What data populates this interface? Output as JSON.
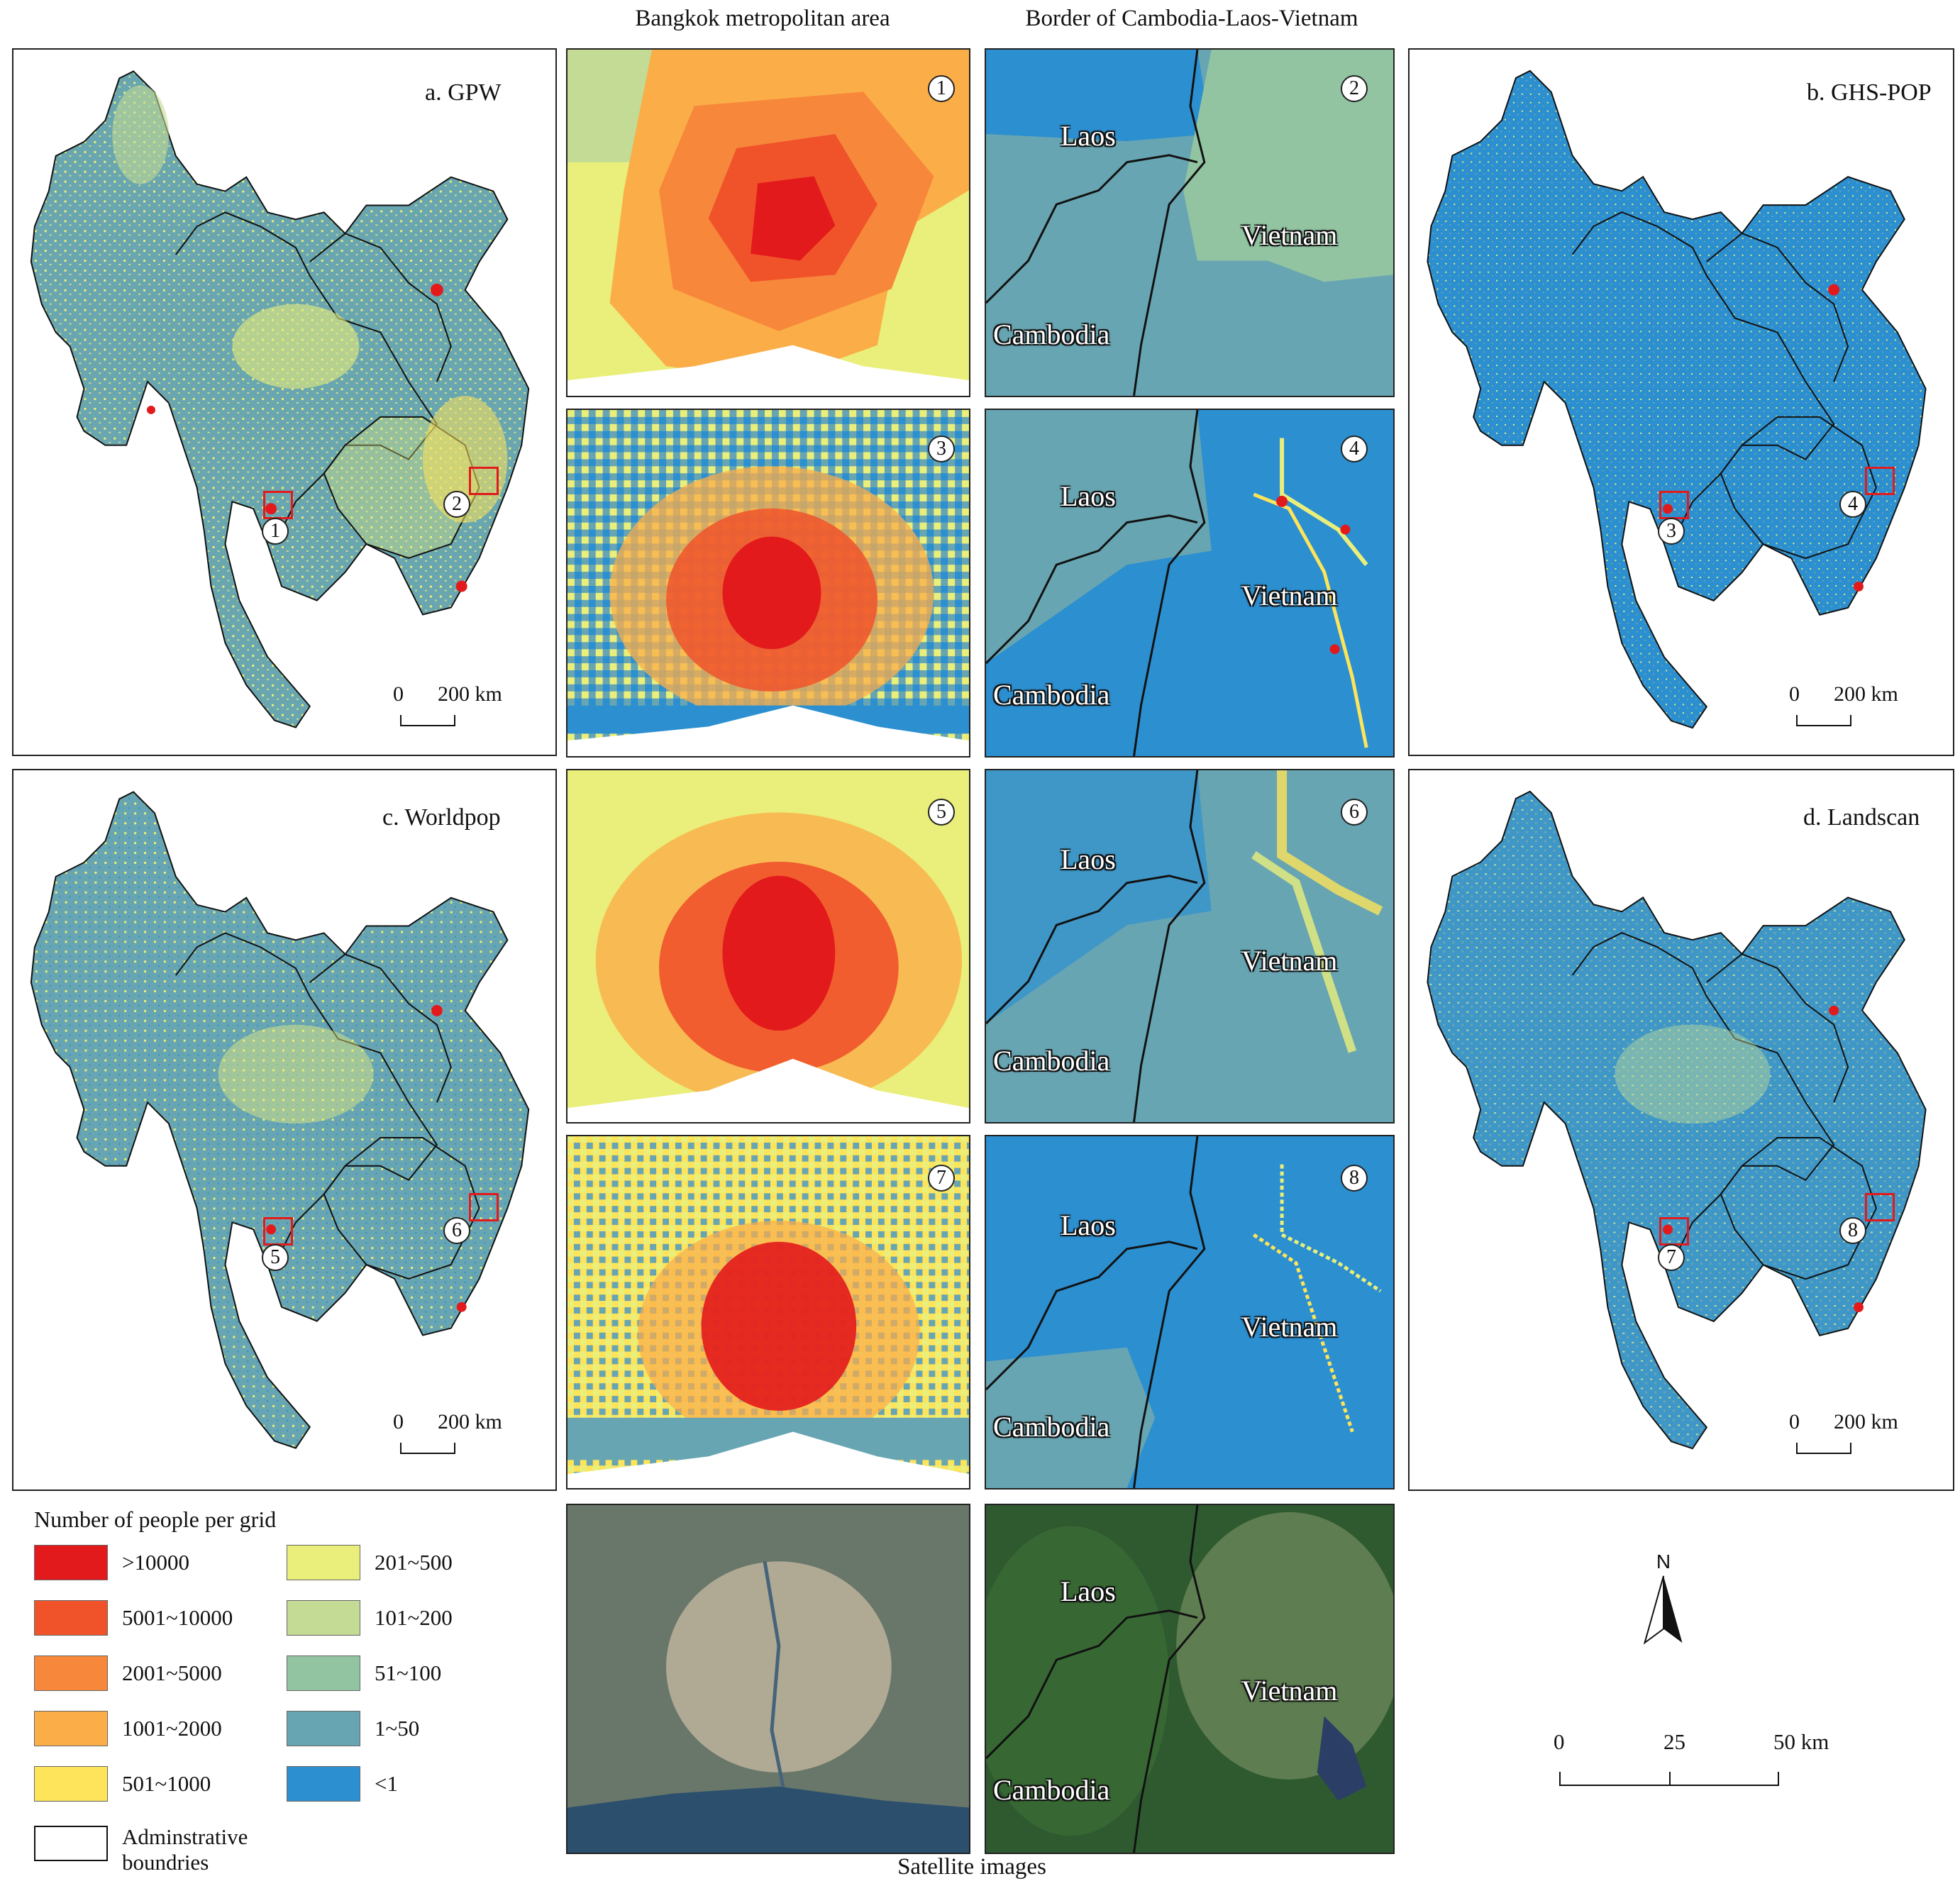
{
  "column_titles": {
    "bangkok": "Bangkok metropolitan area",
    "border": "Border of Cambodia-Laos-Vietnam"
  },
  "footer": "Satellite images",
  "maps": {
    "a": {
      "title": "a. GPW",
      "scale_zero": "0",
      "scale_label": "200 km",
      "insets": [
        "1",
        "2"
      ]
    },
    "b": {
      "title": "b. GHS-POP",
      "scale_zero": "0",
      "scale_label": "200 km",
      "insets": [
        "3",
        "4"
      ]
    },
    "c": {
      "title": "c. Worldpop",
      "scale_zero": "0",
      "scale_label": "200 km",
      "insets": [
        "5",
        "6"
      ]
    },
    "d": {
      "title": "d. Landscan",
      "scale_zero": "0",
      "scale_label": "200 km",
      "insets": [
        "7",
        "8"
      ]
    }
  },
  "panels": {
    "p1": {
      "number": "1"
    },
    "p2": {
      "number": "2"
    },
    "p3": {
      "number": "3"
    },
    "p4": {
      "number": "4"
    },
    "p5": {
      "number": "5"
    },
    "p6": {
      "number": "6"
    },
    "p7": {
      "number": "7"
    },
    "p8": {
      "number": "8"
    }
  },
  "countries": {
    "laos": "Laos",
    "vietnam": "Vietnam",
    "cambodia": "Cambodia"
  },
  "legend": {
    "title": "Number of people per grid",
    "classes": [
      {
        "label": ">10000",
        "color": "#e31a1c"
      },
      {
        "label": "5001~10000",
        "color": "#f0532a"
      },
      {
        "label": "2001~5000",
        "color": "#f7873a"
      },
      {
        "label": "1001~2000",
        "color": "#fbad48"
      },
      {
        "label": "501~1000",
        "color": "#fde45a"
      },
      {
        "label": "201~500",
        "color": "#e9ef7a"
      },
      {
        "label": "101~200",
        "color": "#c3db94"
      },
      {
        "label": "51~100",
        "color": "#92c4a2"
      },
      {
        "label": "1~50",
        "color": "#68a5b2"
      },
      {
        "label": "<1",
        "color": "#2c8fd0"
      }
    ],
    "boundary_label_line1": "Adminstrative",
    "boundary_label_line2": "boundries"
  },
  "north_arrow": {
    "label": "N"
  },
  "bottom_scale": {
    "ticks": [
      "0",
      "25",
      "50 km"
    ]
  }
}
